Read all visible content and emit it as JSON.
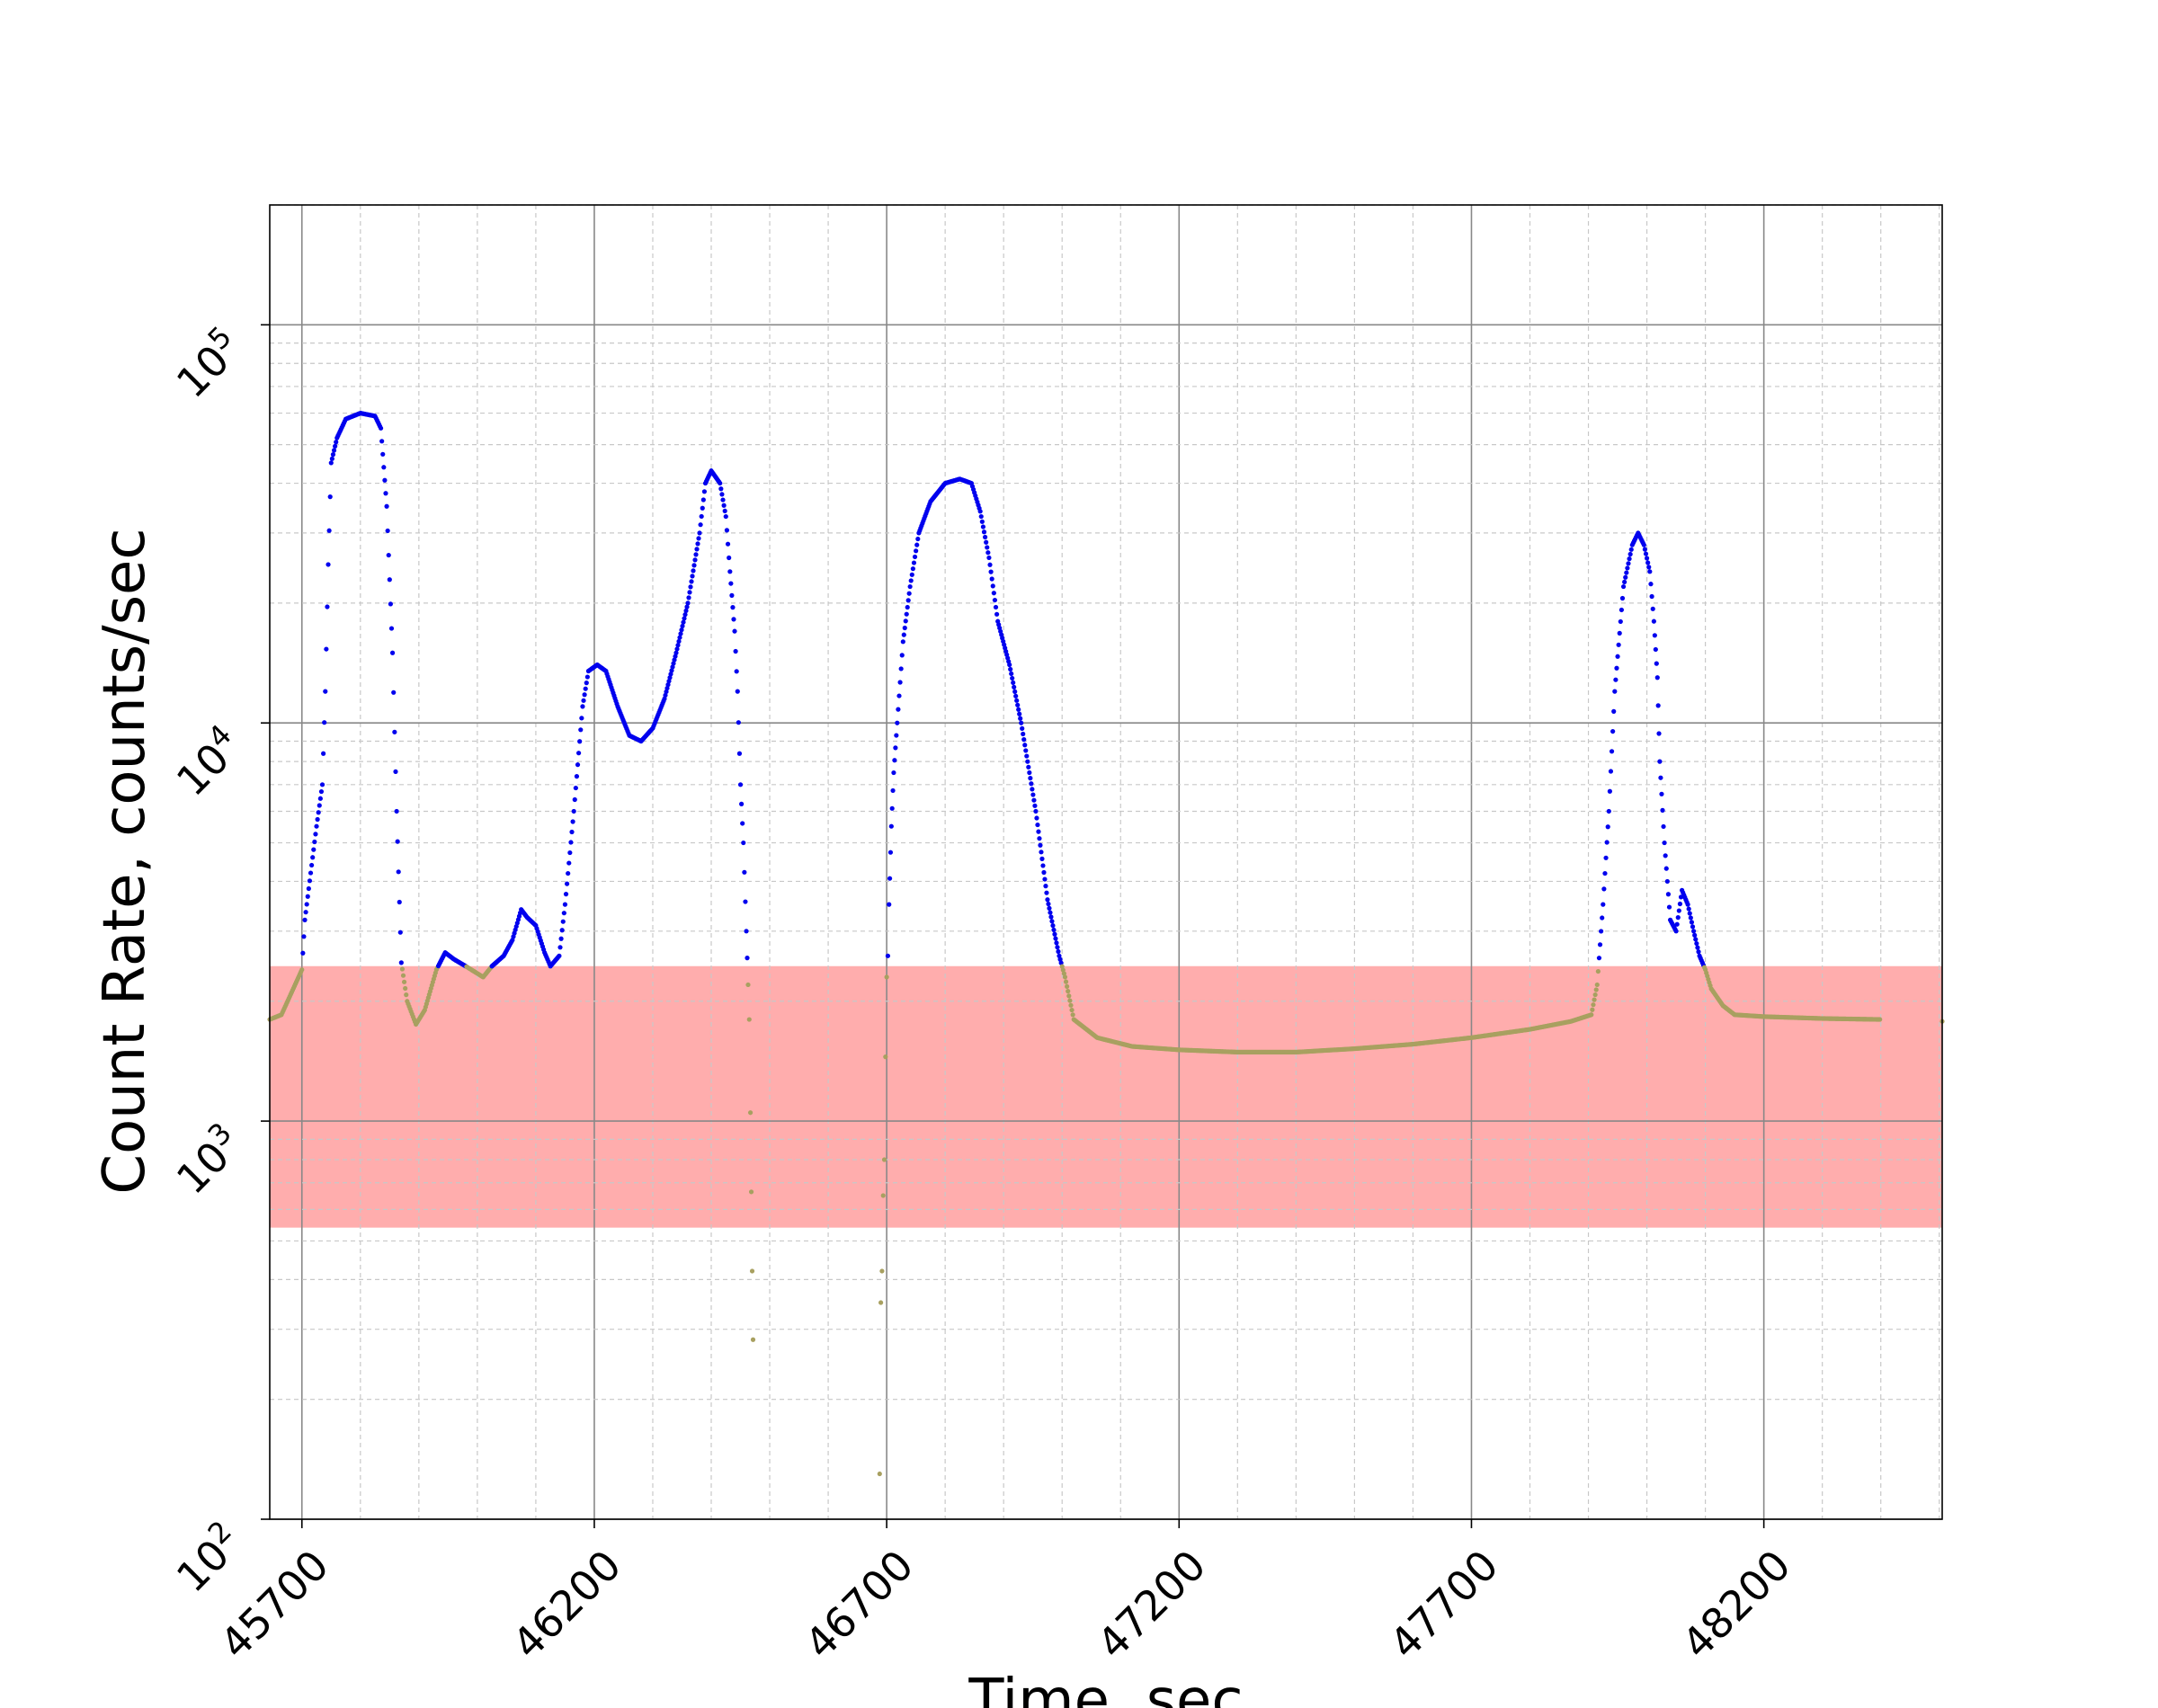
{
  "chart_data": {
    "type": "scatter",
    "title": "",
    "xlabel": "Time, sec",
    "ylabel": "Count Rate, counts/sec",
    "xlim": [
      45645,
      48505
    ],
    "ylim": [
      100,
      200000
    ],
    "y_scale": "log",
    "grid": true,
    "x_ticks": [
      45700,
      46200,
      46700,
      47200,
      47700,
      48200
    ],
    "x_tick_labels": [
      "45700",
      "46200",
      "46700",
      "47200",
      "47700",
      "48200"
    ],
    "y_ticks": [
      100,
      1000,
      10000,
      100000
    ],
    "y_tick_labels": [
      {
        "base": "10",
        "exp": "2"
      },
      {
        "base": "10",
        "exp": "3"
      },
      {
        "base": "10",
        "exp": "4"
      },
      {
        "base": "10",
        "exp": "5"
      }
    ],
    "band": {
      "ymin": 540,
      "ymax": 2450,
      "color": "#ff9999"
    },
    "colors": {
      "above_band": "#0000ee",
      "in_band": "#a8a060"
    },
    "curve": [
      [
        45645,
        1800
      ],
      [
        45665,
        1850
      ],
      [
        45700,
        2400
      ],
      [
        45705,
        3200
      ],
      [
        45715,
        4200
      ],
      [
        45725,
        5500
      ],
      [
        45735,
        7000
      ],
      [
        45740,
        12000
      ],
      [
        45745,
        25000
      ],
      [
        45750,
        45000
      ],
      [
        45760,
        52000
      ],
      [
        45775,
        58000
      ],
      [
        45800,
        60000
      ],
      [
        45825,
        59000
      ],
      [
        45835,
        55000
      ],
      [
        45845,
        35000
      ],
      [
        45855,
        15000
      ],
      [
        45862,
        6000
      ],
      [
        45870,
        2500
      ],
      [
        45880,
        2000
      ],
      [
        45895,
        1750
      ],
      [
        45910,
        1900
      ],
      [
        45930,
        2400
      ],
      [
        45945,
        2650
      ],
      [
        45960,
        2550
      ],
      [
        45980,
        2450
      ],
      [
        46010,
        2300
      ],
      [
        46025,
        2450
      ],
      [
        46045,
        2600
      ],
      [
        46060,
        2850
      ],
      [
        46075,
        3400
      ],
      [
        46085,
        3250
      ],
      [
        46100,
        3100
      ],
      [
        46115,
        2650
      ],
      [
        46125,
        2450
      ],
      [
        46140,
        2600
      ],
      [
        46150,
        3500
      ],
      [
        46165,
        6000
      ],
      [
        46180,
        11000
      ],
      [
        46190,
        13500
      ],
      [
        46205,
        14000
      ],
      [
        46220,
        13500
      ],
      [
        46240,
        11000
      ],
      [
        46260,
        9300
      ],
      [
        46280,
        9000
      ],
      [
        46300,
        9700
      ],
      [
        46320,
        11500
      ],
      [
        46340,
        15000
      ],
      [
        46360,
        20000
      ],
      [
        46380,
        30000
      ],
      [
        46390,
        40000
      ],
      [
        46400,
        43000
      ],
      [
        46415,
        40000
      ],
      [
        46425,
        33000
      ],
      [
        46432,
        24000
      ],
      [
        46440,
        17000
      ],
      [
        46445,
        12000
      ],
      [
        46450,
        7000
      ],
      [
        46455,
        5000
      ],
      [
        46460,
        3000
      ],
      [
        46463,
        2200
      ],
      [
        46465,
        1800
      ],
      [
        46467,
        1050
      ],
      [
        46470,
        420
      ],
      [
        46473,
        190
      ],
      [
        46688,
        130
      ],
      [
        46690,
        350
      ],
      [
        46692,
        420
      ],
      [
        46694,
        650
      ],
      [
        46696,
        800
      ],
      [
        46698,
        1450
      ],
      [
        46700,
        2300
      ],
      [
        46702,
        2600
      ],
      [
        46704,
        3500
      ],
      [
        46708,
        5500
      ],
      [
        46712,
        7500
      ],
      [
        46718,
        10000
      ],
      [
        46728,
        16000
      ],
      [
        46740,
        22000
      ],
      [
        46755,
        30000
      ],
      [
        46775,
        36000
      ],
      [
        46800,
        40000
      ],
      [
        46825,
        41000
      ],
      [
        46845,
        40000
      ],
      [
        46860,
        34000
      ],
      [
        46875,
        26000
      ],
      [
        46890,
        18000
      ],
      [
        46910,
        14000
      ],
      [
        46930,
        10000
      ],
      [
        46955,
        6000
      ],
      [
        46975,
        3600
      ],
      [
        46995,
        2600
      ],
      [
        47005,
        2300
      ],
      [
        47020,
        1800
      ],
      [
        47060,
        1620
      ],
      [
        47120,
        1540
      ],
      [
        47200,
        1510
      ],
      [
        47300,
        1490
      ],
      [
        47400,
        1490
      ],
      [
        47500,
        1520
      ],
      [
        47600,
        1560
      ],
      [
        47700,
        1620
      ],
      [
        47800,
        1700
      ],
      [
        47870,
        1780
      ],
      [
        47905,
        1850
      ],
      [
        47915,
        2200
      ],
      [
        47925,
        3500
      ],
      [
        47935,
        6000
      ],
      [
        47945,
        12000
      ],
      [
        47960,
        22000
      ],
      [
        47975,
        28000
      ],
      [
        47985,
        30000
      ],
      [
        47995,
        28000
      ],
      [
        48005,
        24000
      ],
      [
        48012,
        18000
      ],
      [
        48018,
        13000
      ],
      [
        48022,
        8000
      ],
      [
        48030,
        5000
      ],
      [
        48040,
        3200
      ],
      [
        48050,
        3000
      ],
      [
        48060,
        3800
      ],
      [
        48070,
        3500
      ],
      [
        48080,
        3000
      ],
      [
        48090,
        2600
      ],
      [
        48100,
        2400
      ],
      [
        48110,
        2150
      ],
      [
        48130,
        1950
      ],
      [
        48150,
        1850
      ],
      [
        48200,
        1830
      ],
      [
        48300,
        1810
      ],
      [
        48400,
        1800
      ],
      [
        48505,
        1780
      ]
    ]
  }
}
